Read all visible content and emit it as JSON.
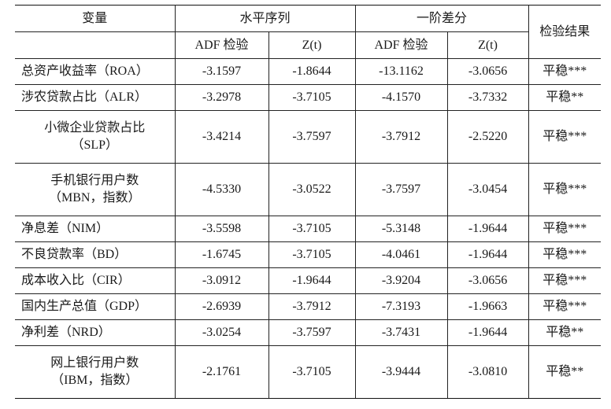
{
  "headers": {
    "variable": "变量",
    "level_series": "水平序列",
    "first_diff": "一阶差分",
    "result": "检验结果",
    "adf": "ADF 检验",
    "zt": "Z(t)"
  },
  "rows": [
    {
      "var_line1": "总资产收益率（ROA）",
      "var_line2": "",
      "adf_level": "-3.1597",
      "zt_level": "-1.8644",
      "adf_diff": "-13.1162",
      "zt_diff": "-3.0656",
      "result": "平稳***"
    },
    {
      "var_line1": "涉农贷款占比（ALR）",
      "var_line2": "",
      "adf_level": "-3.2978",
      "zt_level": "-3.7105",
      "adf_diff": "-4.1570",
      "zt_diff": "-3.7332",
      "result": "平稳**"
    },
    {
      "var_line1": "小微企业贷款占比",
      "var_line2": "（SLP）",
      "adf_level": "-3.4214",
      "zt_level": "-3.7597",
      "adf_diff": "-3.7912",
      "zt_diff": "-2.5220",
      "result": "平稳***"
    },
    {
      "var_line1": "手机银行用户数",
      "var_line2": "（MBN，指数）",
      "adf_level": "-4.5330",
      "zt_level": "-3.0522",
      "adf_diff": "-3.7597",
      "zt_diff": "-3.0454",
      "result": "平稳***"
    },
    {
      "var_line1": "净息差（NIM）",
      "var_line2": "",
      "adf_level": "-3.5598",
      "zt_level": "-3.7105",
      "adf_diff": "-5.3148",
      "zt_diff": "-1.9644",
      "result": "平稳***"
    },
    {
      "var_line1": "不良贷款率（BD）",
      "var_line2": "",
      "adf_level": "-1.6745",
      "zt_level": "-3.7105",
      "adf_diff": "-4.0461",
      "zt_diff": "-1.9644",
      "result": "平稳***"
    },
    {
      "var_line1": "成本收入比（CIR）",
      "var_line2": "",
      "adf_level": "-3.0912",
      "zt_level": "-1.9644",
      "adf_diff": "-3.9204",
      "zt_diff": "-3.0656",
      "result": "平稳***"
    },
    {
      "var_line1": "国内生产总值（GDP）",
      "var_line2": "",
      "adf_level": "-2.6939",
      "zt_level": "-3.7912",
      "adf_diff": "-7.3193",
      "zt_diff": "-1.9663",
      "result": "平稳***"
    },
    {
      "var_line1": "净利差（NRD）",
      "var_line2": "",
      "adf_level": "-3.0254",
      "zt_level": "-3.7597",
      "adf_diff": "-3.7431",
      "zt_diff": "-1.9644",
      "result": "平稳**"
    },
    {
      "var_line1": "网上银行用户数",
      "var_line2": "（IBM，指数）",
      "adf_level": "-2.1761",
      "zt_level": "-3.7105",
      "adf_diff": "-3.9444",
      "zt_diff": "-3.0810",
      "result": "平稳**"
    }
  ]
}
